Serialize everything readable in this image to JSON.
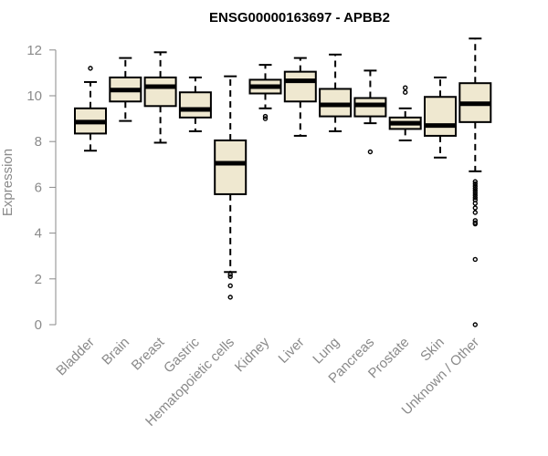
{
  "chart_data": {
    "type": "boxplot",
    "title": "ENSG00000163697 - APBB2",
    "xlabel": "",
    "ylabel": "Expression",
    "ylim": [
      0,
      12
    ],
    "yticks": [
      0,
      2,
      4,
      6,
      8,
      10,
      12
    ],
    "grid": false,
    "legend": "none",
    "box_fill": "#efe8d0",
    "box_stroke": "#000000",
    "categories": [
      "Bladder",
      "Brain",
      "Breast",
      "Gastric",
      "Hematopoietic cells",
      "Kidney",
      "Liver",
      "Lung",
      "Pancreas",
      "Prostate",
      "Skin",
      "Unknown / Other"
    ],
    "boxes": [
      {
        "name": "Bladder",
        "whisker_low": 7.6,
        "q1": 8.35,
        "median": 8.85,
        "q3": 9.45,
        "whisker_high": 10.6,
        "outliers": [
          11.2
        ]
      },
      {
        "name": "Brain",
        "whisker_low": 8.9,
        "q1": 9.75,
        "median": 10.25,
        "q3": 10.8,
        "whisker_high": 11.65,
        "outliers": []
      },
      {
        "name": "Breast",
        "whisker_low": 7.95,
        "q1": 9.55,
        "median": 10.4,
        "q3": 10.8,
        "whisker_high": 11.9,
        "outliers": []
      },
      {
        "name": "Gastric",
        "whisker_low": 8.45,
        "q1": 9.05,
        "median": 9.4,
        "q3": 10.15,
        "whisker_high": 10.8,
        "outliers": []
      },
      {
        "name": "Hematopoietic cells",
        "whisker_low": 2.3,
        "q1": 5.7,
        "median": 7.05,
        "q3": 8.05,
        "whisker_high": 10.85,
        "outliers": [
          2.2,
          2.1,
          1.7,
          1.2
        ]
      },
      {
        "name": "Kidney",
        "whisker_low": 9.45,
        "q1": 10.1,
        "median": 10.4,
        "q3": 10.7,
        "whisker_high": 11.35,
        "outliers": [
          9.1,
          9.0
        ]
      },
      {
        "name": "Liver",
        "whisker_low": 8.25,
        "q1": 9.75,
        "median": 10.65,
        "q3": 11.05,
        "whisker_high": 11.65,
        "outliers": []
      },
      {
        "name": "Lung",
        "whisker_low": 8.45,
        "q1": 9.1,
        "median": 9.6,
        "q3": 10.3,
        "whisker_high": 11.8,
        "outliers": []
      },
      {
        "name": "Pancreas",
        "whisker_low": 8.8,
        "q1": 9.1,
        "median": 9.6,
        "q3": 9.9,
        "whisker_high": 11.1,
        "outliers": [
          7.55
        ]
      },
      {
        "name": "Prostate",
        "whisker_low": 8.05,
        "q1": 8.55,
        "median": 8.8,
        "q3": 9.05,
        "whisker_high": 9.45,
        "outliers": [
          10.35,
          10.15
        ]
      },
      {
        "name": "Skin",
        "whisker_low": 7.3,
        "q1": 8.25,
        "median": 8.7,
        "q3": 9.95,
        "whisker_high": 10.8,
        "outliers": []
      },
      {
        "name": "Unknown / Other",
        "whisker_low": 6.7,
        "q1": 8.85,
        "median": 9.65,
        "q3": 10.55,
        "whisker_high": 12.5,
        "outliers": [
          6.25,
          6.15,
          6.05,
          5.95,
          5.85,
          5.75,
          5.65,
          5.55,
          5.45,
          5.3,
          5.1,
          4.9,
          4.55,
          4.45,
          4.4,
          2.85,
          0.0
        ]
      }
    ]
  }
}
